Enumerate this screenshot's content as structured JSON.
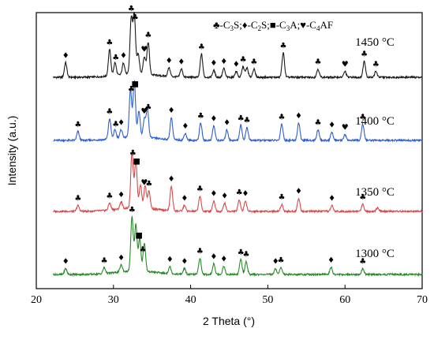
{
  "chart_data": {
    "type": "line",
    "title": "",
    "xlabel": "2 Theta (°)",
    "ylabel": "Intensity (a.u.)",
    "xlim": [
      20,
      70
    ],
    "xticks": [
      20,
      30,
      40,
      50,
      60,
      70
    ],
    "y_ticks_shown": false,
    "grid": false,
    "legend": {
      "placement": "top-right",
      "entries": [
        {
          "symbol": "♣",
          "label": "C",
          "sub1": "3",
          "tail": "S"
        },
        {
          "symbol": "♦",
          "label": "C",
          "sub1": "2",
          "tail": "S"
        },
        {
          "symbol": "■",
          "label": "C",
          "sub1": "3",
          "tail": "A"
        },
        {
          "symbol": "♥",
          "label": "C",
          "sub1": "4",
          "tail": "AF"
        }
      ]
    },
    "series": [
      {
        "name": "1450 °C",
        "color": "#1a1a1a",
        "baseline": 0.0,
        "peaks": [
          [
            23.8,
            0.25
          ],
          [
            29.5,
            0.45
          ],
          [
            30.2,
            0.22
          ],
          [
            31.3,
            0.2
          ],
          [
            32.3,
            0.95
          ],
          [
            32.7,
            1.0
          ],
          [
            33.2,
            0.35
          ],
          [
            34.0,
            0.3
          ],
          [
            34.5,
            0.55
          ],
          [
            37.2,
            0.15
          ],
          [
            38.8,
            0.14
          ],
          [
            41.4,
            0.4
          ],
          [
            43.0,
            0.12
          ],
          [
            44.3,
            0.15
          ],
          [
            45.9,
            0.1
          ],
          [
            46.8,
            0.18
          ],
          [
            47.3,
            0.16
          ],
          [
            48.2,
            0.14
          ],
          [
            52.0,
            0.42
          ],
          [
            56.5,
            0.14
          ],
          [
            60.0,
            0.1
          ],
          [
            62.5,
            0.28
          ],
          [
            64.0,
            0.1
          ]
        ]
      },
      {
        "name": "1400 °C",
        "color": "#2f5fcf",
        "baseline": 0.0,
        "peaks": [
          [
            25.4,
            0.15
          ],
          [
            29.5,
            0.35
          ],
          [
            30.2,
            0.15
          ],
          [
            31.0,
            0.14
          ],
          [
            32.2,
            0.8
          ],
          [
            32.7,
            0.95
          ],
          [
            33.3,
            0.45
          ],
          [
            34.0,
            0.3
          ],
          [
            34.4,
            0.48
          ],
          [
            37.5,
            0.38
          ],
          [
            39.3,
            0.12
          ],
          [
            41.3,
            0.3
          ],
          [
            43.0,
            0.25
          ],
          [
            44.7,
            0.18
          ],
          [
            46.5,
            0.26
          ],
          [
            47.3,
            0.22
          ],
          [
            51.8,
            0.28
          ],
          [
            54.0,
            0.3
          ],
          [
            56.5,
            0.18
          ],
          [
            58.3,
            0.14
          ],
          [
            60.0,
            0.1
          ],
          [
            62.3,
            0.28
          ]
        ]
      },
      {
        "name": "1350 °C",
        "color": "#d84a4a",
        "baseline": 0.0,
        "peaks": [
          [
            25.4,
            0.1
          ],
          [
            29.5,
            0.12
          ],
          [
            31.0,
            0.12
          ],
          [
            32.4,
            0.95
          ],
          [
            32.9,
            0.82
          ],
          [
            33.5,
            0.4
          ],
          [
            34.1,
            0.38
          ],
          [
            34.6,
            0.3
          ],
          [
            37.5,
            0.42
          ],
          [
            39.2,
            0.1
          ],
          [
            41.2,
            0.26
          ],
          [
            43.0,
            0.18
          ],
          [
            44.4,
            0.14
          ],
          [
            46.3,
            0.2
          ],
          [
            47.1,
            0.18
          ],
          [
            51.8,
            0.12
          ],
          [
            54.0,
            0.22
          ],
          [
            58.3,
            0.1
          ],
          [
            62.3,
            0.12
          ],
          [
            64.2,
            0.06
          ]
        ]
      },
      {
        "name": "1300 °C",
        "color": "#2a8a2a",
        "baseline": 0.0,
        "peaks": [
          [
            23.8,
            0.1
          ],
          [
            28.8,
            0.1
          ],
          [
            31.0,
            0.12
          ],
          [
            32.4,
            0.92
          ],
          [
            32.9,
            0.8
          ],
          [
            33.4,
            0.55
          ],
          [
            34.0,
            0.48
          ],
          [
            37.3,
            0.12
          ],
          [
            39.2,
            0.1
          ],
          [
            41.2,
            0.28
          ],
          [
            43.0,
            0.18
          ],
          [
            44.3,
            0.14
          ],
          [
            46.5,
            0.26
          ],
          [
            47.2,
            0.22
          ],
          [
            51.0,
            0.1
          ],
          [
            51.7,
            0.12
          ],
          [
            58.2,
            0.12
          ],
          [
            62.3,
            0.1
          ]
        ]
      }
    ],
    "annotations": [
      {
        "series": 0,
        "items": [
          [
            23.8,
            "♦"
          ],
          [
            29.5,
            "♣"
          ],
          [
            30.3,
            "♣"
          ],
          [
            31.3,
            "♦"
          ],
          [
            32.3,
            "♣"
          ],
          [
            32.8,
            "♣"
          ],
          [
            34.0,
            "♥"
          ],
          [
            34.5,
            "♣"
          ],
          [
            37.2,
            "♦"
          ],
          [
            38.8,
            "♦"
          ],
          [
            41.4,
            "♣"
          ],
          [
            43.0,
            "♦"
          ],
          [
            44.3,
            "♦"
          ],
          [
            45.9,
            "♦"
          ],
          [
            46.8,
            "♣"
          ],
          [
            48.2,
            "♣"
          ],
          [
            52.0,
            "♣"
          ],
          [
            56.5,
            "♣"
          ],
          [
            60.0,
            "♥"
          ],
          [
            62.5,
            "♣"
          ],
          [
            64.0,
            "♣"
          ]
        ]
      },
      {
        "series": 1,
        "items": [
          [
            25.4,
            "♣"
          ],
          [
            29.5,
            "♣"
          ],
          [
            30.3,
            "♣"
          ],
          [
            31.0,
            "♦"
          ],
          [
            32.3,
            "♣"
          ],
          [
            32.8,
            "■"
          ],
          [
            34.0,
            "♥"
          ],
          [
            34.5,
            "♣"
          ],
          [
            37.5,
            "♦"
          ],
          [
            39.3,
            "♦"
          ],
          [
            41.3,
            "♣"
          ],
          [
            43.0,
            "♦"
          ],
          [
            44.7,
            "♦"
          ],
          [
            46.5,
            "♣"
          ],
          [
            47.3,
            "♣"
          ],
          [
            51.8,
            "♣"
          ],
          [
            54.0,
            "♦"
          ],
          [
            56.5,
            "♣"
          ],
          [
            58.3,
            "♦"
          ],
          [
            60.0,
            "♥"
          ],
          [
            62.3,
            "♣"
          ]
        ]
      },
      {
        "series": 2,
        "items": [
          [
            25.4,
            "♣"
          ],
          [
            29.5,
            "♣"
          ],
          [
            31.0,
            "♦"
          ],
          [
            32.5,
            "♣"
          ],
          [
            33.0,
            "■"
          ],
          [
            34.0,
            "♥"
          ],
          [
            34.6,
            "♣"
          ],
          [
            37.5,
            "♦"
          ],
          [
            39.2,
            "♦"
          ],
          [
            41.2,
            "♣"
          ],
          [
            43.0,
            "♦"
          ],
          [
            44.4,
            "♦"
          ],
          [
            46.3,
            "♣"
          ],
          [
            47.1,
            "♦"
          ],
          [
            51.8,
            "♣"
          ],
          [
            54.0,
            "♦"
          ],
          [
            58.3,
            "♦"
          ],
          [
            62.3,
            "♣"
          ]
        ]
      },
      {
        "series": 3,
        "items": [
          [
            23.8,
            "♦"
          ],
          [
            28.8,
            "♣"
          ],
          [
            31.0,
            "♦"
          ],
          [
            32.4,
            "♣"
          ],
          [
            33.3,
            "■"
          ],
          [
            33.8,
            "♣"
          ],
          [
            37.3,
            "♦"
          ],
          [
            39.2,
            "♦"
          ],
          [
            41.2,
            "♣"
          ],
          [
            43.0,
            "♦"
          ],
          [
            44.3,
            "♦"
          ],
          [
            46.5,
            "♣"
          ],
          [
            47.2,
            "♣"
          ],
          [
            51.0,
            "♦"
          ],
          [
            51.7,
            "♣"
          ],
          [
            58.2,
            "♦"
          ],
          [
            62.3,
            "♣"
          ]
        ]
      }
    ]
  }
}
